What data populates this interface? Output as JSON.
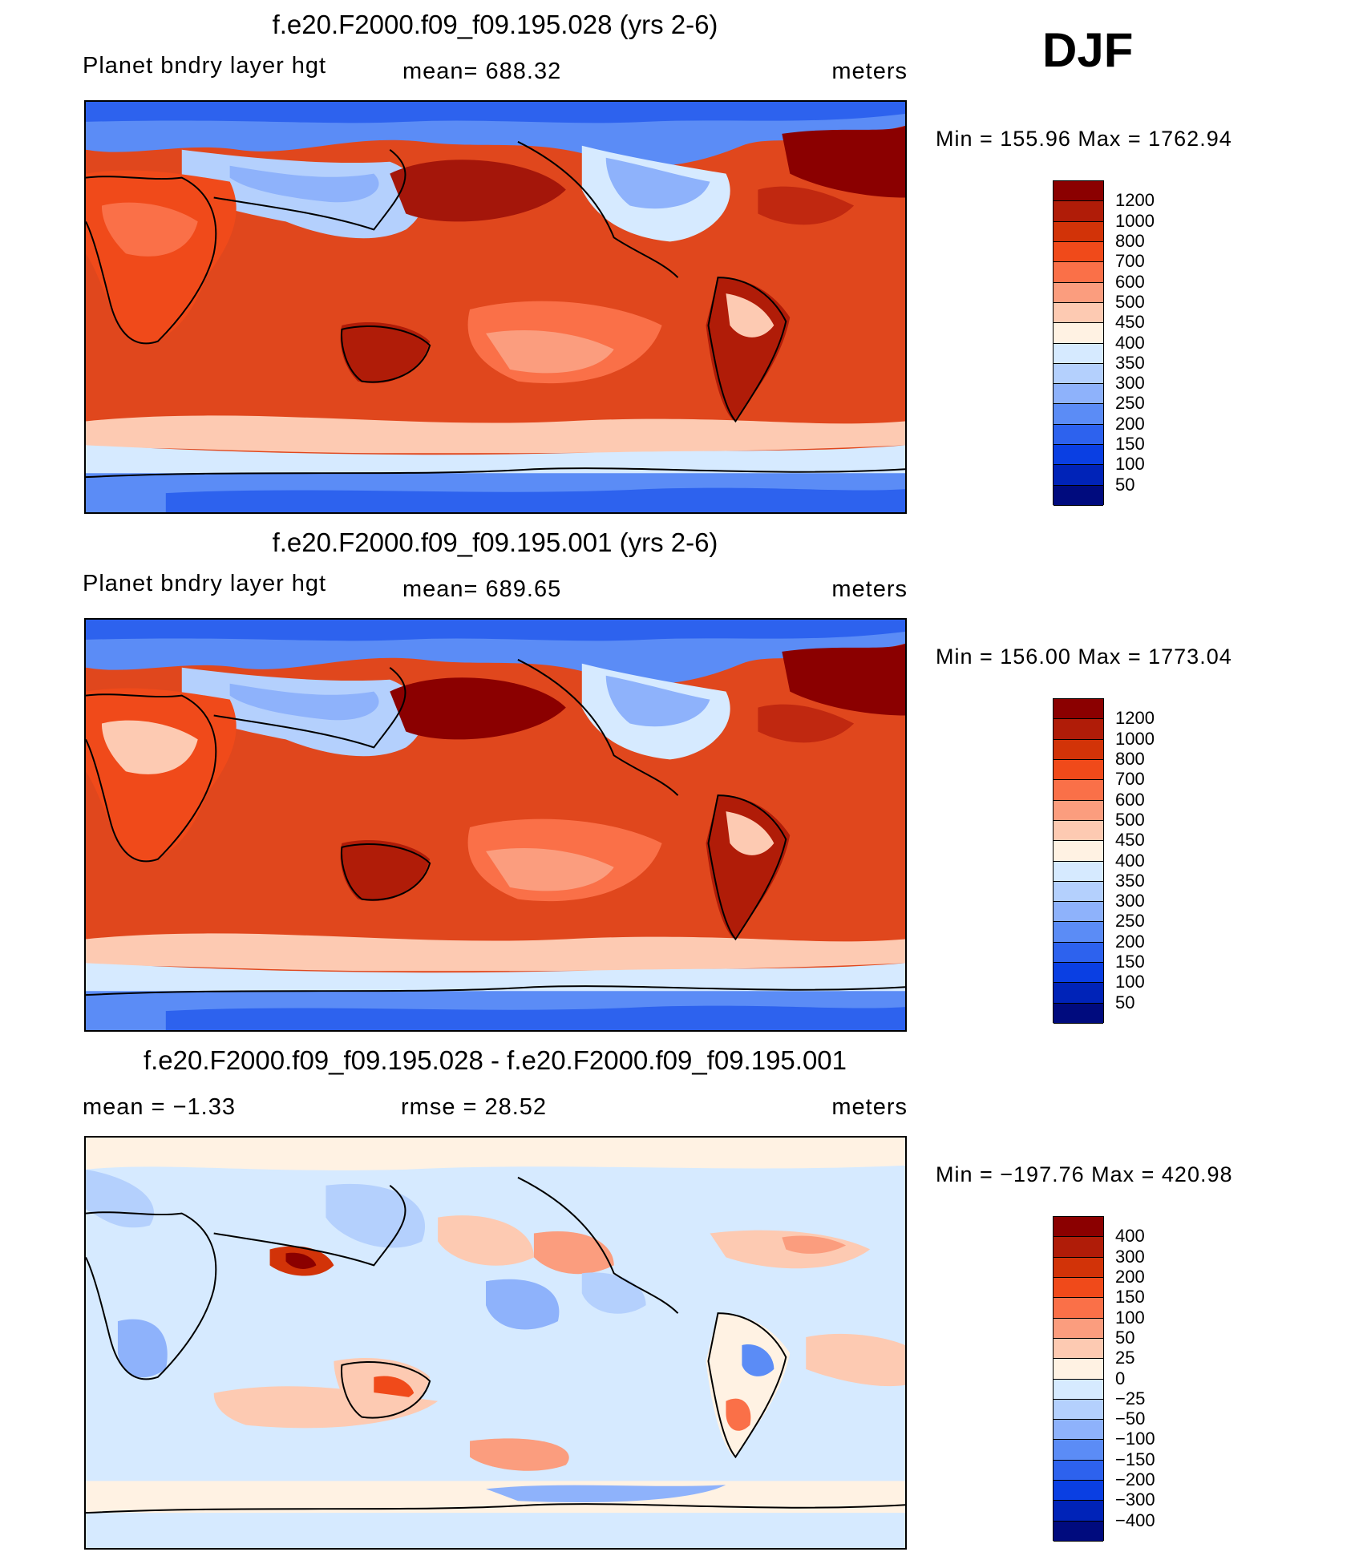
{
  "season": "DJF",
  "panels": [
    {
      "id": "model-028",
      "title": "f.e20.F2000.f09_f09.195.028 (yrs 2-6)",
      "left_label": "Planet bndry layer hgt",
      "center_label": "mean=  688.32",
      "units": "meters",
      "minmax": "Min  =  155.96  Max  =  1762.94",
      "colorbar_labels": [
        "1200",
        "1000",
        "800",
        "700",
        "600",
        "500",
        "450",
        "400",
        "350",
        "300",
        "250",
        "200",
        "150",
        "100",
        "50"
      ],
      "colors": [
        "#8b0000",
        "#b01c08",
        "#d23308",
        "#f04a1a",
        "#fa7048",
        "#fb9d7e",
        "#fdcab2",
        "#fff2e3",
        "#d6eaff",
        "#b4d0fd",
        "#8eb2fb",
        "#5b8cf6",
        "#2d62ee",
        "#0a3fe3",
        "#0023b8",
        "#000b7e"
      ]
    },
    {
      "id": "model-001",
      "title": "f.e20.F2000.f09_f09.195.001 (yrs 2-6)",
      "left_label": "Planet bndry layer hgt",
      "center_label": "mean=  689.65",
      "units": "meters",
      "minmax": "Min  =  156.00  Max  =  1773.04",
      "colorbar_labels": [
        "1200",
        "1000",
        "800",
        "700",
        "600",
        "500",
        "450",
        "400",
        "350",
        "300",
        "250",
        "200",
        "150",
        "100",
        "50"
      ],
      "colors": [
        "#8b0000",
        "#b01c08",
        "#d23308",
        "#f04a1a",
        "#fa7048",
        "#fb9d7e",
        "#fdcab2",
        "#fff2e3",
        "#d6eaff",
        "#b4d0fd",
        "#8eb2fb",
        "#5b8cf6",
        "#2d62ee",
        "#0a3fe3",
        "#0023b8",
        "#000b7e"
      ]
    },
    {
      "id": "difference",
      "title": "f.e20.F2000.f09_f09.195.028 - f.e20.F2000.f09_f09.195.001",
      "left_label": "mean =   −1.33",
      "center_label": "rmse =    28.52",
      "units": "meters",
      "minmax": "Min  =  −197.76  Max  =  420.98",
      "colorbar_labels": [
        "400",
        "300",
        "200",
        "150",
        "100",
        "50",
        "25",
        "0",
        "−25",
        "−50",
        "−100",
        "−150",
        "−200",
        "−300",
        "−400"
      ],
      "colors": [
        "#8b0000",
        "#b01c08",
        "#d23308",
        "#f04a1a",
        "#fa7048",
        "#fb9d7e",
        "#fdcab2",
        "#fff2e3",
        "#d6eaff",
        "#b4d0fd",
        "#8eb2fb",
        "#5b8cf6",
        "#2d62ee",
        "#0a3fe3",
        "#0023b8",
        "#000b7e"
      ]
    }
  ]
}
